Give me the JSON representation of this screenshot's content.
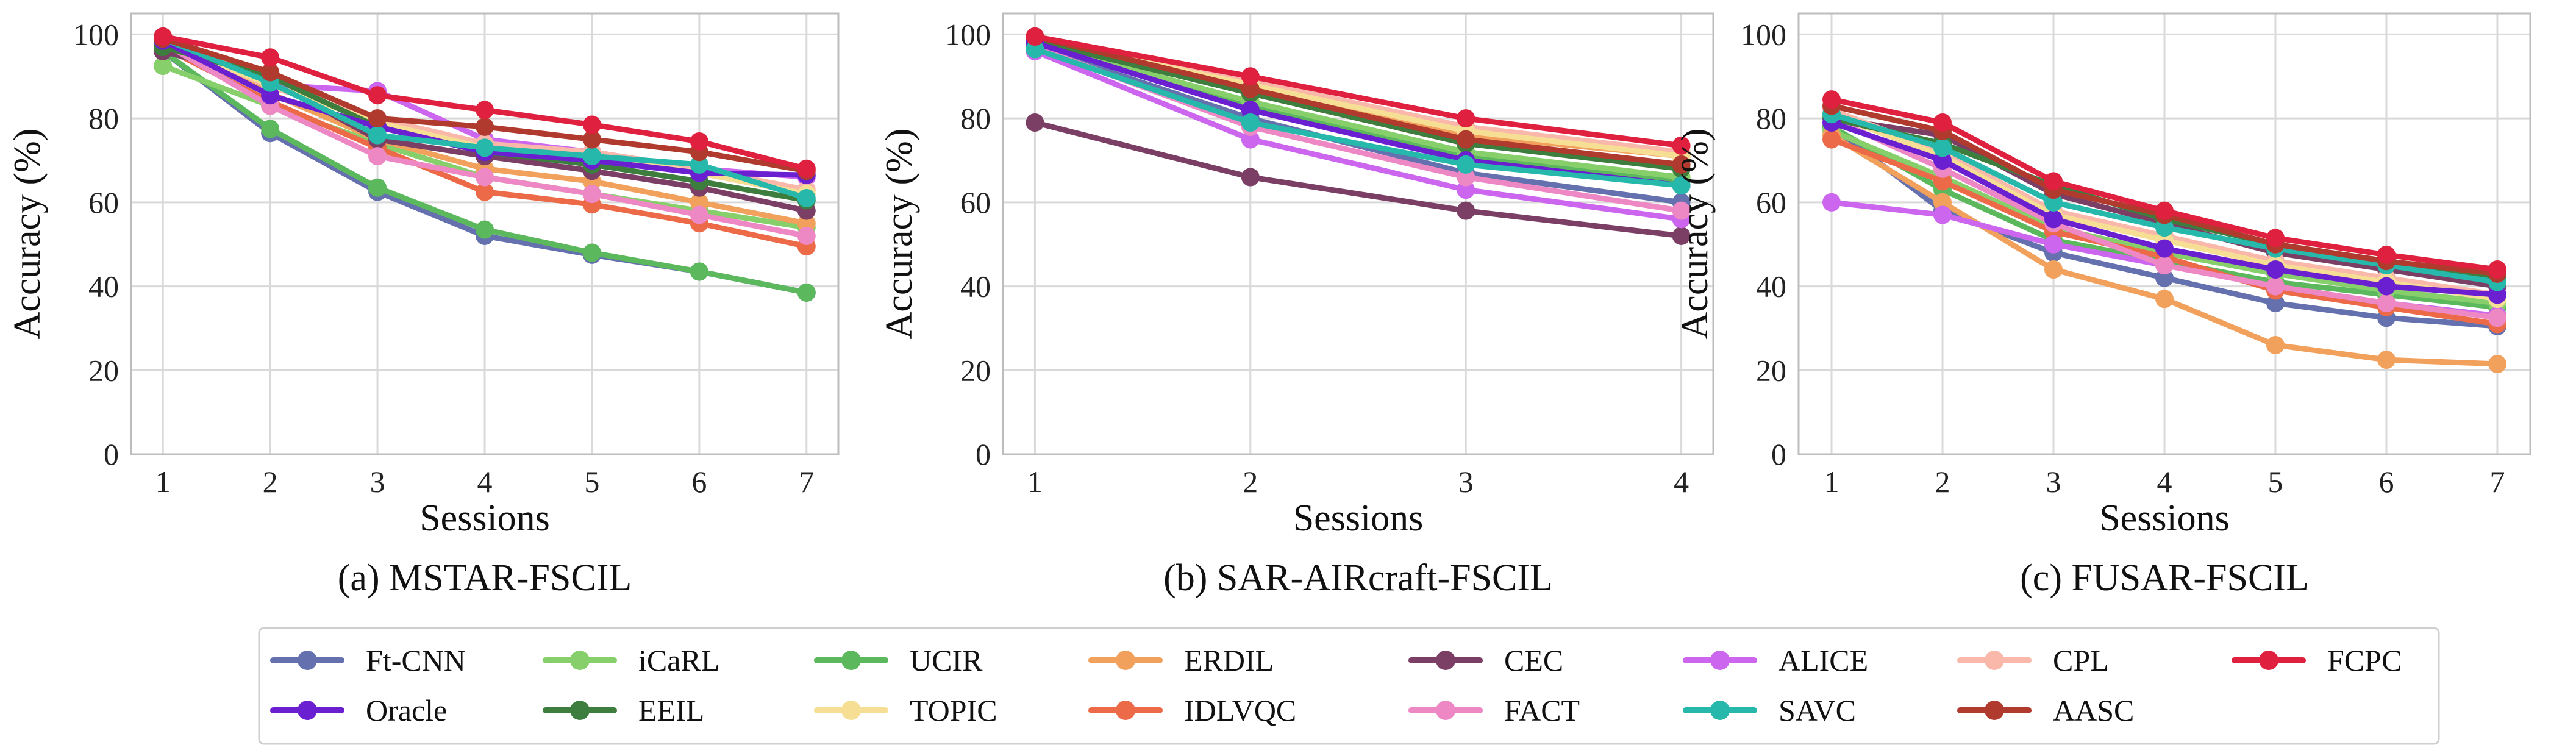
{
  "chart_data": [
    {
      "type": "line",
      "caption": "(a)  MSTAR-FSCIL",
      "xlabel": "Sessions",
      "ylabel": "Accuracy (%)",
      "x": [
        1,
        2,
        3,
        4,
        5,
        6,
        7
      ],
      "xticks": [
        "1",
        "2",
        "3",
        "4",
        "5",
        "6",
        "7"
      ],
      "ylim": [
        0,
        105
      ],
      "yticks": [
        0,
        20,
        40,
        60,
        80,
        100
      ],
      "grid": true,
      "series": [
        {
          "name": "Ft-CNN",
          "values": [
            96,
            76.5,
            62.5,
            52,
            47.5,
            43.5,
            38.5
          ]
        },
        {
          "name": "iCaRL",
          "values": [
            92.5,
            83,
            74,
            66,
            62,
            58,
            54
          ]
        },
        {
          "name": "UCIR",
          "values": [
            96,
            77.5,
            63.5,
            53.5,
            48,
            43.5,
            38.5
          ]
        },
        {
          "name": "ERDIL",
          "values": [
            98,
            86,
            75,
            68,
            65,
            60,
            55
          ]
        },
        {
          "name": "CEC",
          "values": [
            96,
            89,
            75,
            71,
            67.5,
            63.5,
            58
          ]
        },
        {
          "name": "ALICE",
          "values": [
            98,
            88,
            86.5,
            75,
            72,
            68,
            66
          ]
        },
        {
          "name": "CPL",
          "values": [
            99,
            87.5,
            80,
            74,
            72,
            68,
            63
          ]
        },
        {
          "name": "FCPC",
          "values": [
            99.5,
            94.5,
            85.5,
            82,
            78.5,
            74.5,
            68
          ]
        },
        {
          "name": "Oracle",
          "values": [
            98.5,
            85.5,
            78,
            72,
            70,
            67,
            66.5
          ]
        },
        {
          "name": "EEIL",
          "values": [
            97,
            90,
            78,
            72,
            69,
            65,
            60.5
          ]
        },
        {
          "name": "TOPIC",
          "values": [
            98,
            88,
            79,
            73,
            71,
            67,
            62
          ]
        },
        {
          "name": "IDLVQC",
          "values": [
            97,
            84,
            73,
            62.5,
            59.5,
            55,
            49.5
          ]
        },
        {
          "name": "FACT",
          "values": [
            98,
            83,
            71,
            66,
            62,
            57,
            52
          ]
        },
        {
          "name": "SAVC",
          "values": [
            99,
            88.5,
            76,
            73,
            71,
            69,
            61
          ]
        },
        {
          "name": "AASC",
          "values": [
            99,
            91,
            80,
            78,
            75,
            72,
            67.5
          ]
        }
      ]
    },
    {
      "type": "line",
      "caption": "(b)  SAR-AIRcraft-FSCIL",
      "xlabel": "Sessions",
      "ylabel": "Accuracy (%)",
      "x": [
        1,
        2,
        3,
        4
      ],
      "xticks": [
        "1",
        "2",
        "3",
        "4"
      ],
      "ylim": [
        0,
        105
      ],
      "yticks": [
        0,
        20,
        40,
        60,
        80,
        100
      ],
      "grid": true,
      "series": [
        {
          "name": "Ft-CNN",
          "values": [
            97,
            80,
            67,
            60
          ]
        },
        {
          "name": "iCaRL",
          "values": [
            98,
            84,
            72,
            66
          ]
        },
        {
          "name": "UCIR",
          "values": [
            98,
            83,
            71,
            65
          ]
        },
        {
          "name": "ERDIL",
          "values": [
            99,
            87,
            76,
            71
          ]
        },
        {
          "name": "CEC",
          "values": [
            79,
            66,
            58,
            52
          ]
        },
        {
          "name": "ALICE",
          "values": [
            96,
            75,
            63,
            56
          ]
        },
        {
          "name": "CPL",
          "values": [
            99.5,
            89,
            78,
            72
          ]
        },
        {
          "name": "FCPC",
          "values": [
            99.5,
            90,
            80,
            73.5
          ]
        },
        {
          "name": "Oracle",
          "values": [
            98,
            82,
            70,
            64
          ]
        },
        {
          "name": "EEIL",
          "values": [
            98.5,
            86,
            74,
            68
          ]
        },
        {
          "name": "TOPIC",
          "values": [
            99,
            88,
            77,
            71
          ]
        },
        {
          "name": "IDLVQC",
          "values": [
            99,
            86,
            74,
            69
          ]
        },
        {
          "name": "FACT",
          "values": [
            97,
            78,
            66,
            58
          ]
        },
        {
          "name": "SAVC",
          "values": [
            96.5,
            79,
            69,
            64
          ]
        },
        {
          "name": "AASC",
          "values": [
            99.5,
            87,
            75,
            69
          ]
        }
      ]
    },
    {
      "type": "line",
      "caption": "(c)  FUSAR-FSCIL",
      "xlabel": "Sessions",
      "ylabel": "Accuracy (%)",
      "x": [
        1,
        2,
        3,
        4,
        5,
        6,
        7
      ],
      "xticks": [
        "1",
        "2",
        "3",
        "4",
        "5",
        "6",
        "7"
      ],
      "ylim": [
        0,
        105
      ],
      "yticks": [
        0,
        20,
        40,
        60,
        80,
        100
      ],
      "grid": true,
      "series": [
        {
          "name": "Ft-CNN",
          "values": [
            78,
            58,
            48,
            42,
            36,
            32.5,
            30.5
          ]
        },
        {
          "name": "iCaRL",
          "values": [
            77,
            66,
            54,
            48,
            43,
            39,
            36
          ]
        },
        {
          "name": "UCIR",
          "values": [
            78,
            63,
            51,
            46,
            41,
            38,
            35
          ]
        },
        {
          "name": "ERDIL",
          "values": [
            76,
            60,
            44,
            37,
            26,
            22.5,
            21.5
          ]
        },
        {
          "name": "CEC",
          "values": [
            80,
            76,
            62,
            55,
            48,
            44,
            40
          ]
        },
        {
          "name": "ALICE",
          "values": [
            60,
            57,
            50,
            45,
            40,
            36,
            33
          ]
        },
        {
          "name": "CPL",
          "values": [
            82,
            72,
            58,
            52,
            46,
            42,
            38
          ]
        },
        {
          "name": "FCPC",
          "values": [
            84.5,
            79,
            65,
            58,
            51.5,
            47.5,
            44
          ]
        },
        {
          "name": "Oracle",
          "values": [
            79,
            70,
            56,
            49,
            44,
            40,
            38
          ]
        },
        {
          "name": "EEIL",
          "values": [
            80,
            74,
            64,
            56,
            50,
            46,
            42
          ]
        },
        {
          "name": "TOPIC",
          "values": [
            81,
            71,
            57,
            51,
            45,
            41,
            37
          ]
        },
        {
          "name": "IDLVQC",
          "values": [
            75,
            65,
            53,
            47,
            39,
            35,
            31
          ]
        },
        {
          "name": "FACT",
          "values": [
            80,
            68,
            55,
            45,
            40,
            36,
            32.5
          ]
        },
        {
          "name": "SAVC",
          "values": [
            81,
            73,
            60,
            54,
            49,
            45,
            41
          ]
        },
        {
          "name": "AASC",
          "values": [
            83,
            77,
            63,
            57,
            50,
            46,
            43
          ]
        }
      ]
    }
  ],
  "legend": {
    "placement": "bottom",
    "entries": [
      {
        "name": "Ft-CNN",
        "color": "#6571ae"
      },
      {
        "name": "iCaRL",
        "color": "#86cf6a"
      },
      {
        "name": "UCIR",
        "color": "#5cb85c"
      },
      {
        "name": "ERDIL",
        "color": "#f2a15c"
      },
      {
        "name": "CEC",
        "color": "#7b3f66"
      },
      {
        "name": "ALICE",
        "color": "#cc66ee"
      },
      {
        "name": "CPL",
        "color": "#f9b8aa"
      },
      {
        "name": "FCPC",
        "color": "#e0203f"
      },
      {
        "name": "Oracle",
        "color": "#6a1fd0"
      },
      {
        "name": "EEIL",
        "color": "#3d7d3d"
      },
      {
        "name": "TOPIC",
        "color": "#f7de95"
      },
      {
        "name": "IDLVQC",
        "color": "#ec6a48"
      },
      {
        "name": "FACT",
        "color": "#ee88c4"
      },
      {
        "name": "SAVC",
        "color": "#26b8aa"
      },
      {
        "name": "AASC",
        "color": "#b03a2e"
      }
    ]
  }
}
